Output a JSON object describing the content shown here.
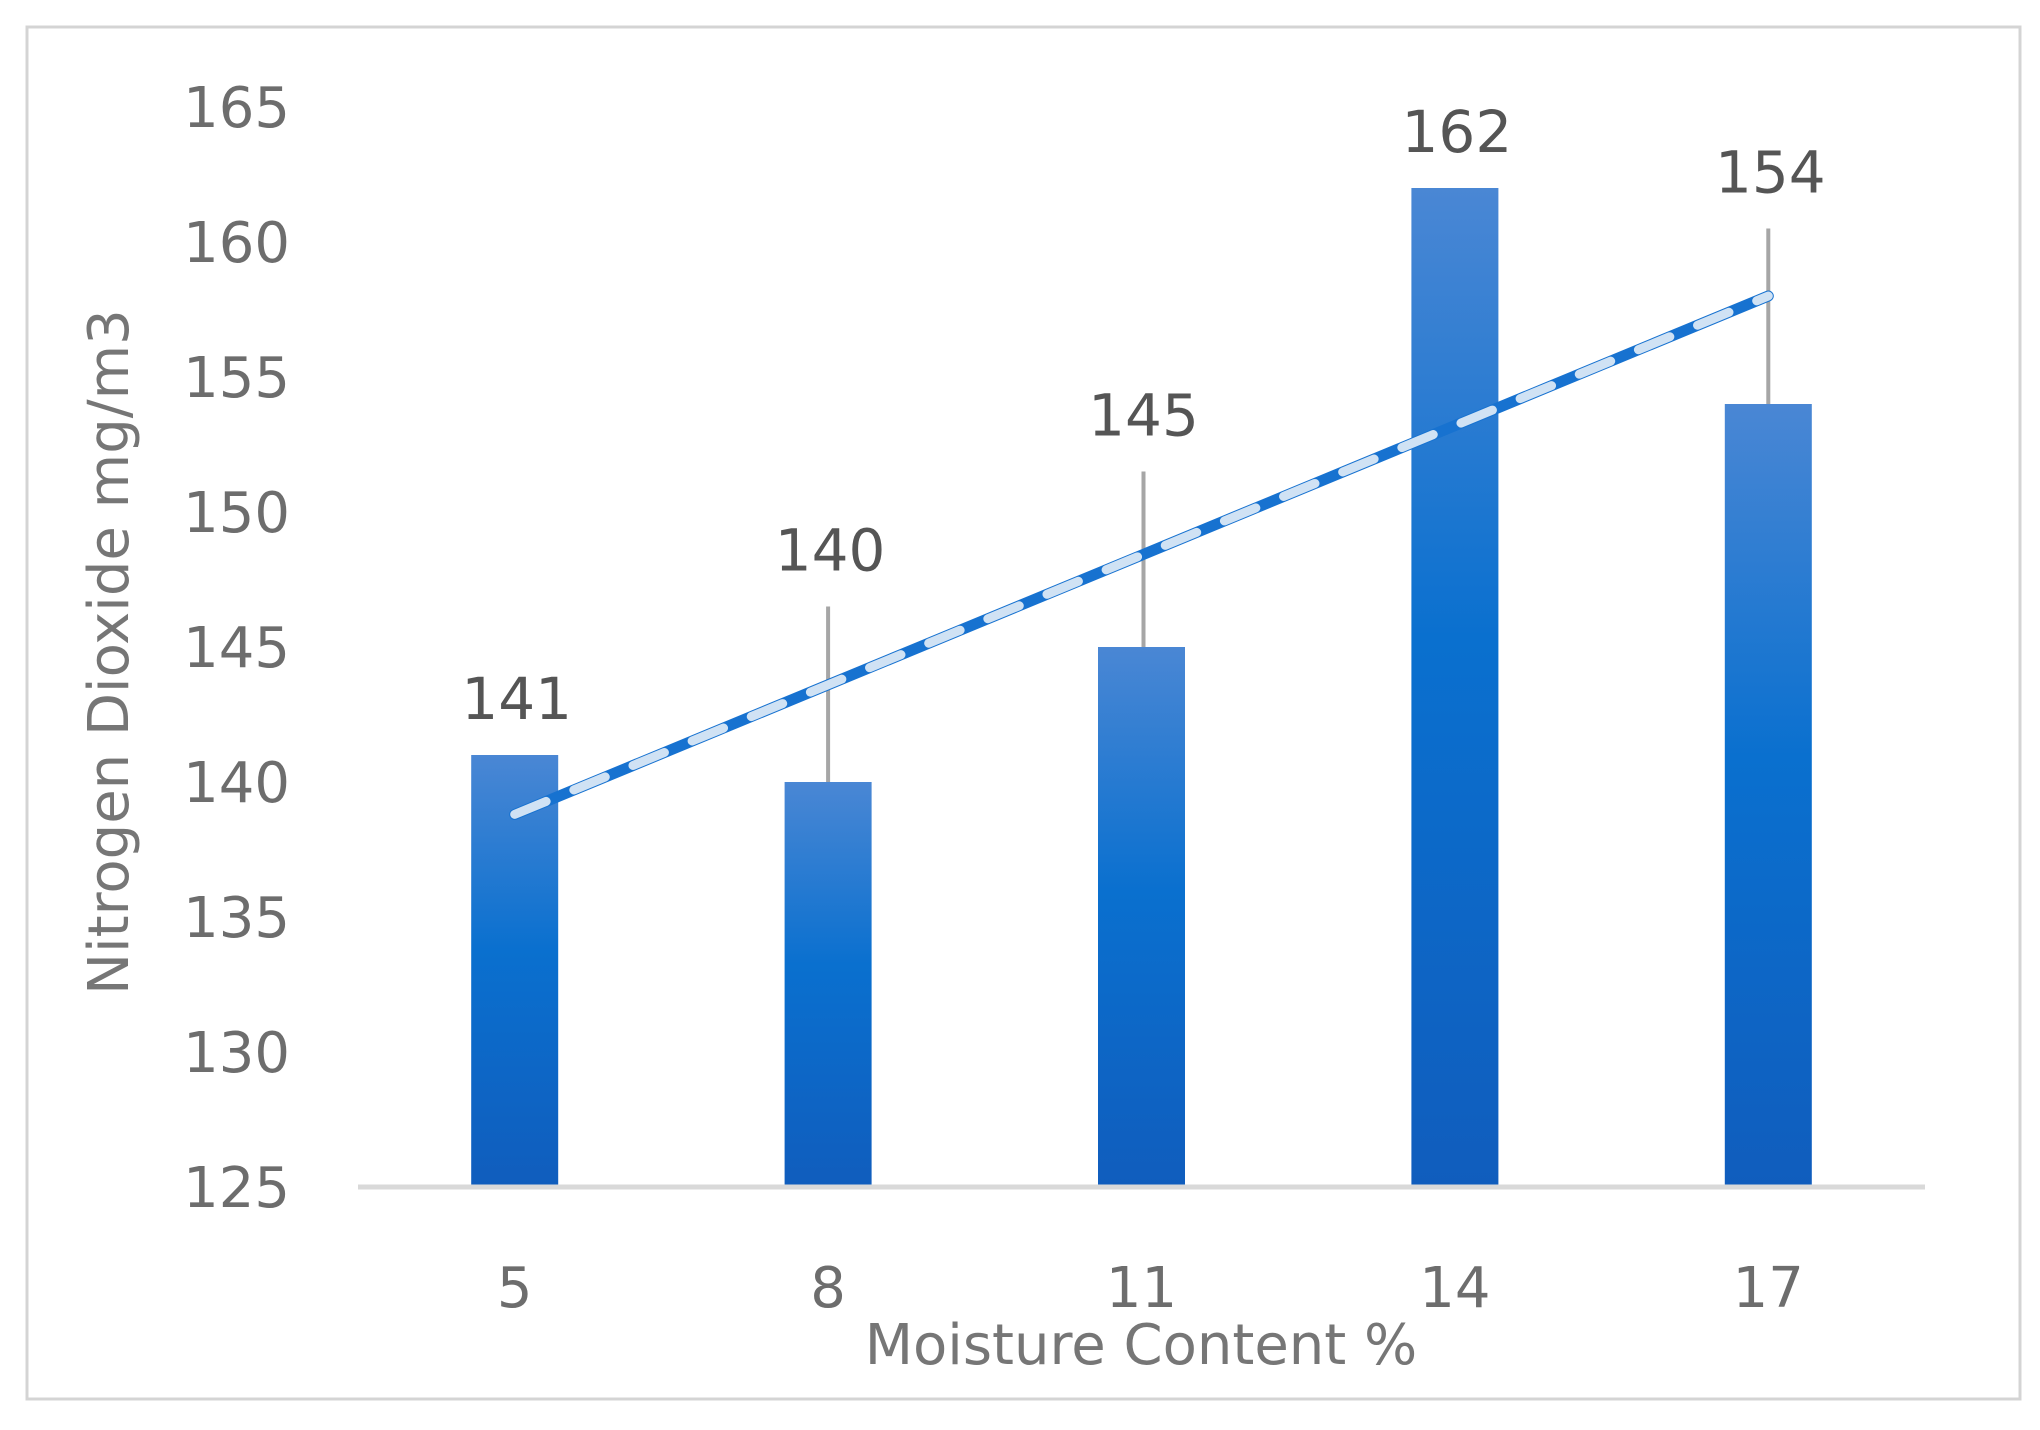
{
  "chart_data": {
    "type": "bar",
    "title": "",
    "xlabel": "Moisture Content  %",
    "ylabel": "Nitrogen Dioxide  mg/m3",
    "categories": [
      "5",
      "8",
      "11",
      "14",
      "17"
    ],
    "series": [
      {
        "values": [
          141,
          140,
          145,
          162,
          154
        ],
        "error_plus": [
          0,
          6.5,
          6.5,
          0,
          6.5
        ],
        "data_labels": [
          "141",
          "140",
          "145",
          "162",
          "154"
        ],
        "color": "#0e6fcf"
      }
    ],
    "trendline": {
      "type": "linear",
      "start": 138.8,
      "end": 158.0,
      "color": "#1772d0",
      "dash_color": "#d0e2f4"
    },
    "ylim": [
      125,
      165
    ],
    "yticks": [
      "125",
      "130",
      "135",
      "140",
      "145",
      "150",
      "155",
      "160",
      "165"
    ],
    "grid": false,
    "legend": "none"
  }
}
